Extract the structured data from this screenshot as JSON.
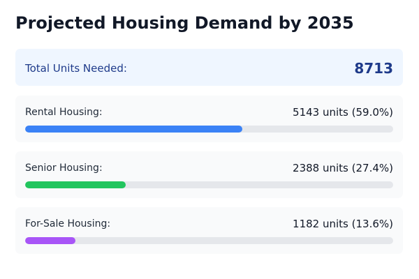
{
  "page": {
    "title": "Projected Housing Demand by 2035"
  },
  "total": {
    "label": "Total Units Needed:",
    "value": "8713"
  },
  "categories": [
    {
      "label": "Rental Housing:",
      "value_text": "5143 units (59.0%)",
      "percent": 59.0,
      "color": "#3b82f6"
    },
    {
      "label": "Senior Housing:",
      "value_text": "2388 units (27.4%)",
      "percent": 27.4,
      "color": "#22c55e"
    },
    {
      "label": "For-Sale Housing:",
      "value_text": "1182 units (13.6%)",
      "percent": 13.6,
      "color": "#a855f7"
    }
  ]
}
